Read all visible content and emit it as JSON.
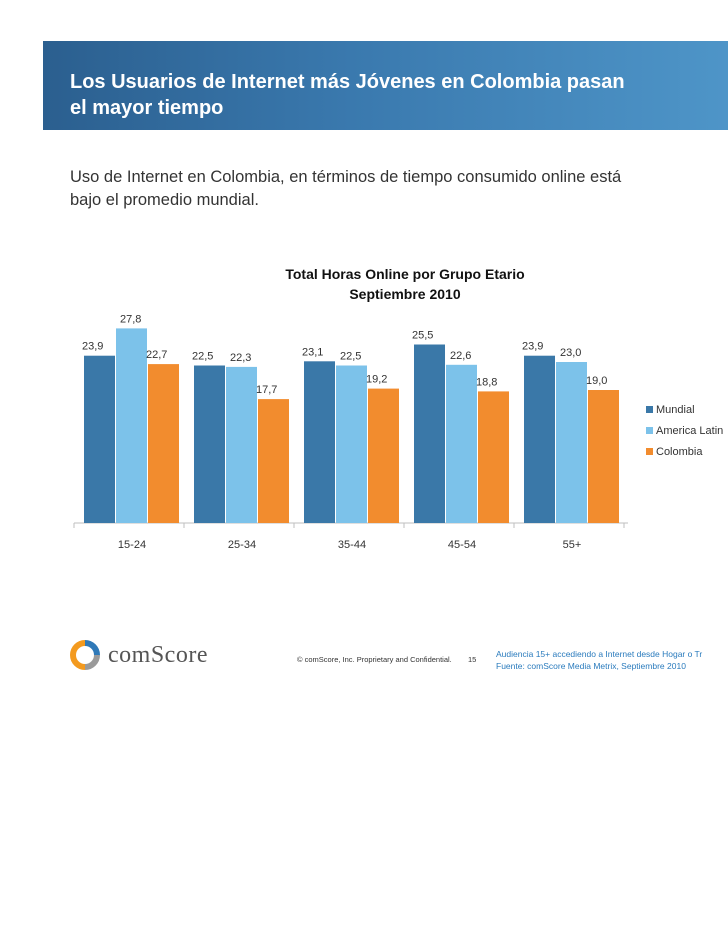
{
  "slide": {
    "title_line1": "Los Usuarios de Internet más Jóvenes en Colombia pasan",
    "title_line2": "el mayor tiempo",
    "subtitle_line1": "Uso de Internet en Colombia, en términos de tiempo consumido online está",
    "subtitle_line2": "bajo el promedio mundial."
  },
  "footer": {
    "logo_text": "comScore",
    "copyright": "© comScore, Inc.  Proprietary and Confidential.",
    "page_number": "15",
    "source_line1": "Audiencia 15+ accediendo a Internet desde Hogar o Tr",
    "source_line2": "Fuente:  comScore Media Metrix, Septiembre 2010"
  },
  "colors": {
    "mundial": "#3a78a8",
    "america_latina": "#7cc2ea",
    "colombia": "#f28c2e",
    "logo_orange": "#f39a1f",
    "logo_blue": "#2f79b8",
    "logo_gray": "#9a9a9a"
  },
  "chart_data": {
    "type": "bar",
    "title_line1": "Total Horas Online por Grupo Etario",
    "title_line2": "Septiembre 2010",
    "categories": [
      "15-24",
      "25-34",
      "35-44",
      "45-54",
      "55+"
    ],
    "series": [
      {
        "name": "Mundial",
        "values": [
          23.9,
          22.5,
          23.1,
          25.5,
          23.9
        ],
        "labels": [
          "23,9",
          "22,5",
          "23,1",
          "25,5",
          "23,9"
        ]
      },
      {
        "name": "America Latina",
        "values": [
          27.8,
          22.3,
          22.5,
          22.6,
          23.0
        ],
        "labels": [
          "27,8",
          "22,3",
          "22,5",
          "22,6",
          "23,0"
        ]
      },
      {
        "name": "Colombia",
        "values": [
          22.7,
          17.7,
          19.2,
          18.8,
          19.0
        ],
        "labels": [
          "22,7",
          "17,7",
          "19,2",
          "18,8",
          "19,0"
        ]
      }
    ],
    "legend_labels": [
      "Mundial",
      "America Latin",
      "Colombia"
    ],
    "legend_position": "right",
    "grid": false,
    "y_axis_visible": false
  }
}
